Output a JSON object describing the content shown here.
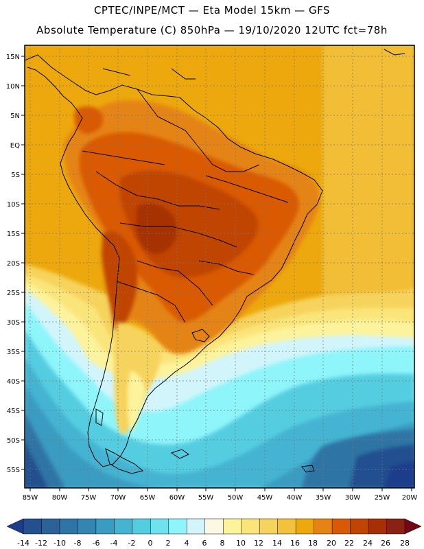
{
  "header": {
    "line1": "CPTEC/INPE/MCT —  Eta Model 15km — GFS",
    "line2": "Absolute Temperature (C) 850hPa — 19/10/2020 12UTC fct=78h"
  },
  "map": {
    "lat_ticks": [
      "15N",
      "10N",
      "5N",
      "EQ",
      "5S",
      "10S",
      "15S",
      "20S",
      "25S",
      "30S",
      "35S",
      "40S",
      "45S",
      "50S",
      "55S"
    ],
    "lon_ticks": [
      "85W",
      "80W",
      "75W",
      "70W",
      "65W",
      "60W",
      "55W",
      "50W",
      "45W",
      "40W",
      "35W",
      "30W",
      "25W",
      "20W"
    ],
    "lat_range": [
      17,
      -58
    ],
    "lon_range": [
      -86,
      -20
    ],
    "gridlines": "dotted"
  },
  "colorbar": {
    "labels": [
      "-14",
      "-12",
      "-10",
      "-8",
      "-6",
      "-4",
      "-2",
      "0",
      "2",
      "4",
      "6",
      "8",
      "10",
      "12",
      "14",
      "16",
      "18",
      "20",
      "22",
      "24",
      "26",
      "28"
    ],
    "colors": [
      "#1e3c8c",
      "#23508f",
      "#2a6299",
      "#2e74a5",
      "#3486b2",
      "#3a9cc2",
      "#45b4d2",
      "#55cde1",
      "#6ee2ef",
      "#8ef5fa",
      "#d2f5fc",
      "#fdf8e4",
      "#fcf39c",
      "#fae57a",
      "#f6d35c",
      "#f2c23c",
      "#eca80c",
      "#e58414",
      "#d95a05",
      "#c04404",
      "#a53006",
      "#892212",
      "#720816"
    ]
  }
}
